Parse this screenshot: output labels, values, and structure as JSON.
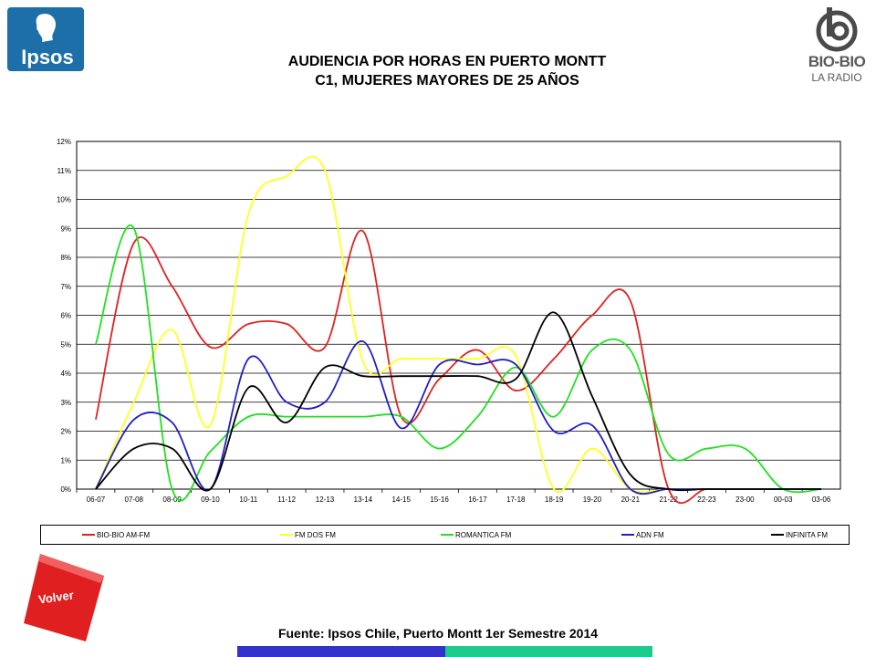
{
  "header": {
    "title_line1": "AUDIENCIA POR HORAS EN PUERTO MONTT",
    "title_line2": "C1, MUJERES MAYORES DE 25 AÑOS",
    "ipsos_logo_text": "Ipsos",
    "biobio_logo_text": "BIO-BIO",
    "biobio_logo_sub": "LA RADIO"
  },
  "footer": {
    "source": "Fuente: Ipsos Chile, Puerto Montt 1er Semestre 2014",
    "volver_label": "Volver"
  },
  "colors": {
    "bio_bio": "#e02020",
    "fm_dos": "#ffff20",
    "romantica": "#20e020",
    "adn": "#2020c0",
    "infinita": "#000000",
    "bar_blue": "#3333cc",
    "bar_teal": "#1ccc8e",
    "ipsos_blue": "#1c6fa8"
  },
  "chart_data": {
    "type": "line",
    "categories": [
      "06-07",
      "07-08",
      "08-09",
      "09-10",
      "10-11",
      "11-12",
      "12-13",
      "13-14",
      "14-15",
      "15-16",
      "16-17",
      "17-18",
      "18-19",
      "19-20",
      "20-21",
      "21-22",
      "22-23",
      "23-00",
      "00-03",
      "03-06"
    ],
    "y_ticks": [
      "0%",
      "1%",
      "2%",
      "3%",
      "4%",
      "5%",
      "6%",
      "7%",
      "8%",
      "9%",
      "10%",
      "11%",
      "12%"
    ],
    "ylim": [
      0,
      12
    ],
    "grid": true,
    "legend_position": "bottom",
    "series": [
      {
        "name": "BIO-BIO AM-FM",
        "color": "#e02020",
        "values": [
          2.4,
          8.5,
          7.0,
          4.9,
          5.7,
          5.7,
          4.9,
          8.9,
          2.5,
          3.8,
          4.8,
          3.4,
          4.5,
          6.0,
          6.5,
          0.0,
          0.0,
          0.0,
          0.0,
          0.0
        ]
      },
      {
        "name": "FM DOS FM",
        "color": "#ffff20",
        "values": [
          0.0,
          3.0,
          5.5,
          2.2,
          9.5,
          10.8,
          11.0,
          4.4,
          4.5,
          4.5,
          4.5,
          4.6,
          0.0,
          1.4,
          0.0,
          0.0,
          0.0,
          0.0,
          0.0,
          0.0
        ]
      },
      {
        "name": "ROMANTICA FM",
        "color": "#20e020",
        "values": [
          5.0,
          9.0,
          0.0,
          1.3,
          2.5,
          2.5,
          2.5,
          2.5,
          2.5,
          1.4,
          2.5,
          4.2,
          2.5,
          4.8,
          4.8,
          1.2,
          1.4,
          1.4,
          0.0,
          0.0
        ]
      },
      {
        "name": "ADN FM",
        "color": "#2020c0",
        "values": [
          0.0,
          2.4,
          2.3,
          0.0,
          4.5,
          3.0,
          3.0,
          5.1,
          2.1,
          4.3,
          4.3,
          4.3,
          2.0,
          2.2,
          0.0,
          0.0,
          0.0,
          0.0,
          0.0,
          0.0
        ]
      },
      {
        "name": "INFINITA FM",
        "color": "#000000",
        "values": [
          0.0,
          1.4,
          1.4,
          0.0,
          3.5,
          2.3,
          4.2,
          3.9,
          3.9,
          3.9,
          3.9,
          3.8,
          6.1,
          3.2,
          0.5,
          0.0,
          0.0,
          0.0,
          0.0,
          0.0
        ]
      }
    ]
  }
}
